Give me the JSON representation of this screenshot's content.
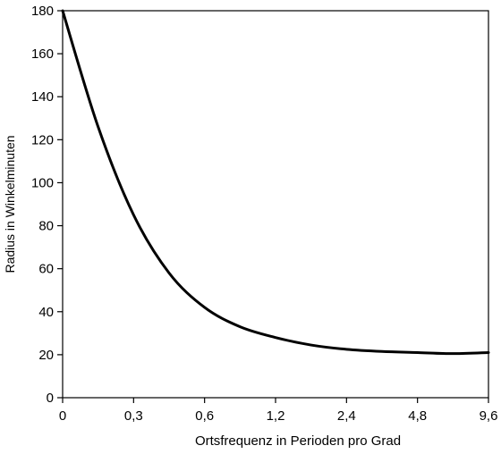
{
  "chart_data": {
    "type": "line",
    "title": "",
    "xlabel": "Ortsfrequenz in Perioden pro Grad",
    "ylabel": "Radius in Winkelminuten",
    "x_ticks": [
      "0",
      "0,3",
      "0,6",
      "1,2",
      "2,4",
      "4,8",
      "9,6"
    ],
    "y_ticks": [
      "0",
      "20",
      "40",
      "60",
      "80",
      "100",
      "120",
      "140",
      "160",
      "180"
    ],
    "ylim": [
      0,
      180
    ],
    "grid": false,
    "legend": "none",
    "line_color": "#000000",
    "x_scale_note": "tick labels are not evenly scaled; positions index 0..6",
    "series": [
      {
        "x": [
          0,
          0.5,
          1,
          1.5,
          2,
          2.5,
          3,
          3.5,
          4,
          4.5,
          5,
          5.5,
          6
        ],
        "y": [
          180,
          126,
          85,
          58,
          42,
          33,
          28,
          24.5,
          22.5,
          21.5,
          21,
          20.5,
          21
        ]
      }
    ]
  }
}
